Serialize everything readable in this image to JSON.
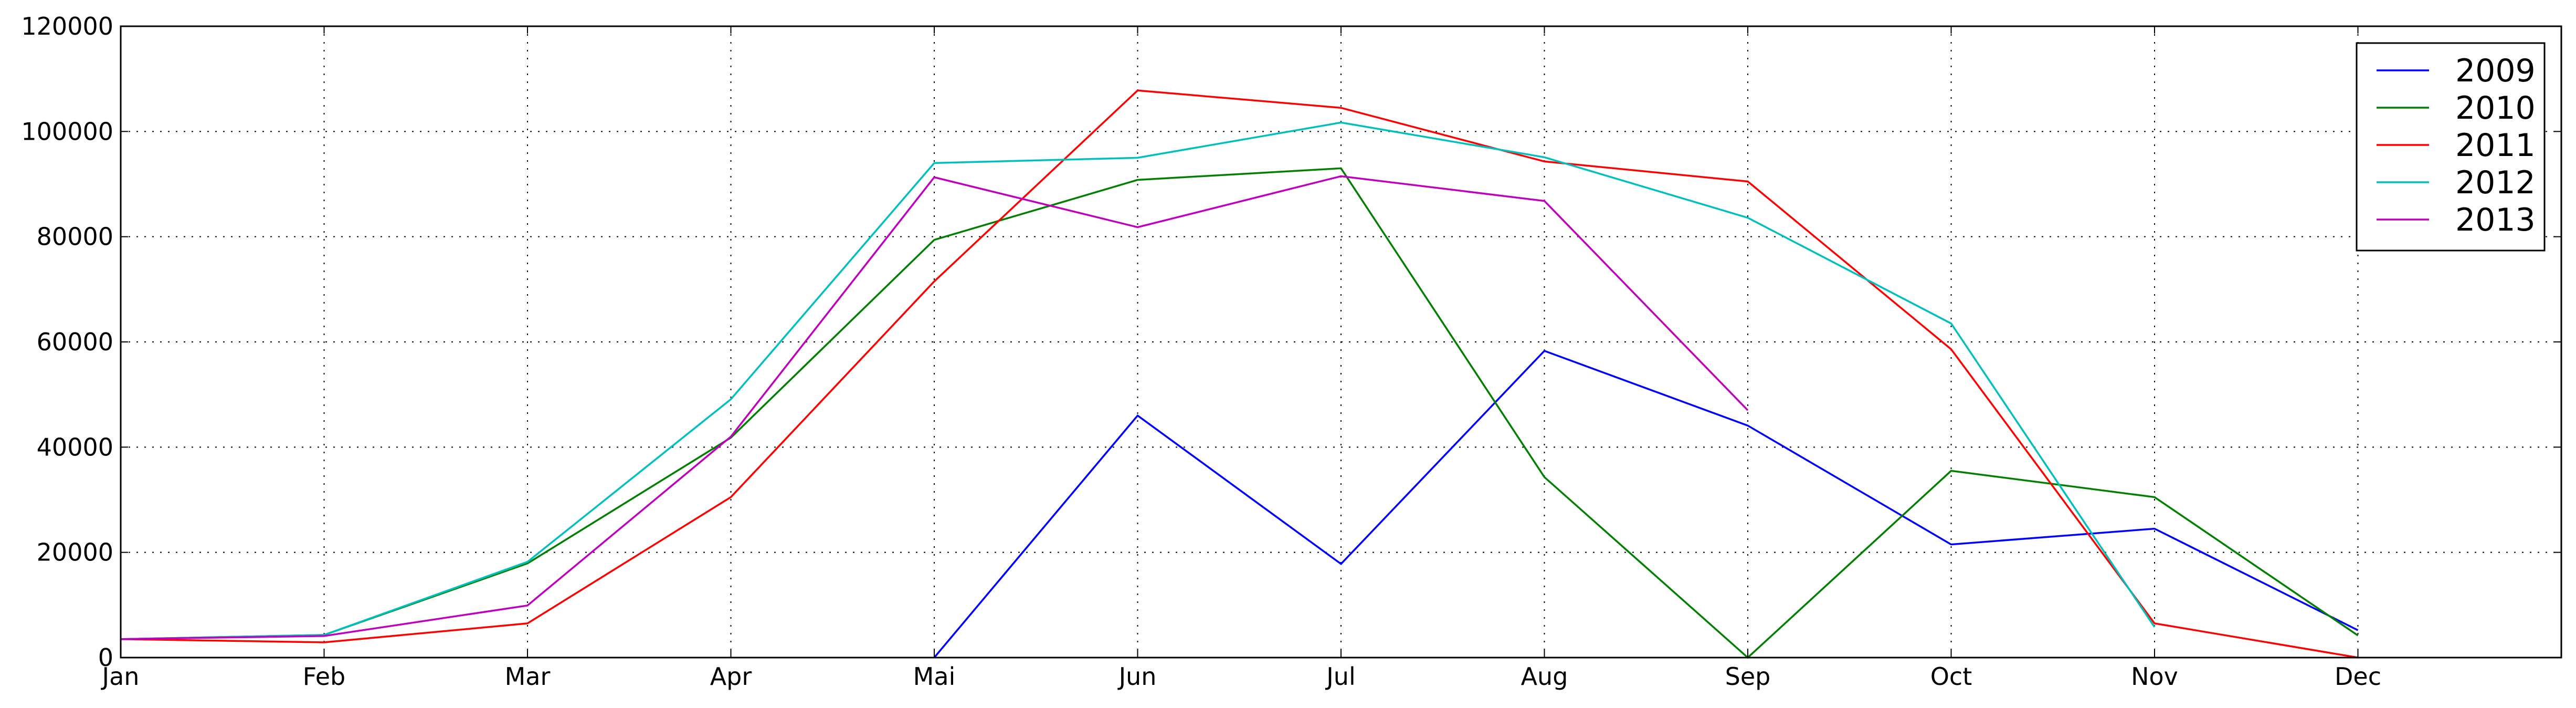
{
  "chart_data": {
    "type": "line",
    "title": "",
    "xlabel": "",
    "ylabel": "",
    "categories": [
      "Jan",
      "Feb",
      "Mar",
      "Apr",
      "Mai",
      "Jun",
      "Jul",
      "Aug",
      "Sep",
      "Oct",
      "Nov",
      "Dec"
    ],
    "x_range": [
      0,
      12
    ],
    "ylim": [
      0,
      120000
    ],
    "y_ticks": [
      "0",
      "20000",
      "40000",
      "60000",
      "80000",
      "100000",
      "120000"
    ],
    "grid": true,
    "legend_position": "top-right",
    "series": [
      {
        "name": "2009",
        "color": "#0000ff",
        "values": [
          null,
          null,
          null,
          null,
          0,
          46000,
          17800,
          58300,
          44100,
          21500,
          24500,
          5200
        ]
      },
      {
        "name": "2010",
        "color": "#007f00",
        "values": [
          3500,
          4300,
          17900,
          41800,
          79400,
          90800,
          93000,
          34300,
          0,
          35500,
          30500,
          4200
        ]
      },
      {
        "name": "2011",
        "color": "#ff0000",
        "values": [
          3500,
          2900,
          6500,
          30500,
          71500,
          107800,
          104500,
          94300,
          90500,
          58600,
          6500,
          0
        ]
      },
      {
        "name": "2012",
        "color": "#00bfbf",
        "values": [
          3500,
          4300,
          18200,
          49100,
          94000,
          95000,
          101700,
          95100,
          83600,
          63500,
          5800,
          null
        ]
      },
      {
        "name": "2013",
        "color": "#bf00bf",
        "values": [
          3500,
          4100,
          9900,
          42000,
          91300,
          81800,
          91500,
          86800,
          47000,
          null,
          null,
          null
        ]
      }
    ]
  }
}
